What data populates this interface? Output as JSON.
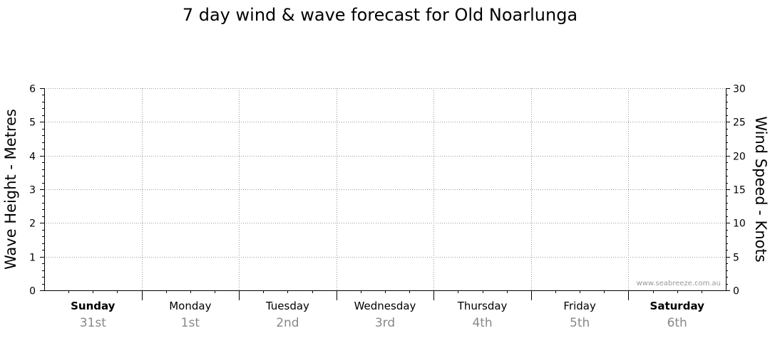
{
  "chart_data": {
    "type": "line",
    "title": "7 day wind & wave forecast for Old Noarlunga",
    "ylabel_left": "Wave Height - Metres",
    "ylabel_right": "Wind Speed - Knots",
    "ylim_left": [
      0,
      6
    ],
    "ylim_right": [
      0,
      30
    ],
    "yticks_left": [
      "0",
      "1",
      "2",
      "3",
      "4",
      "5",
      "6"
    ],
    "yticks_right": [
      "0",
      "5",
      "10",
      "15",
      "20",
      "25",
      "30"
    ],
    "days": [
      {
        "name": "Sunday",
        "date": "31st",
        "bold": true
      },
      {
        "name": "Monday",
        "date": "1st",
        "bold": false
      },
      {
        "name": "Tuesday",
        "date": "2nd",
        "bold": false
      },
      {
        "name": "Wednesday",
        "date": "3rd",
        "bold": false
      },
      {
        "name": "Thursday",
        "date": "4th",
        "bold": false
      },
      {
        "name": "Friday",
        "date": "5th",
        "bold": false
      },
      {
        "name": "Saturday",
        "date": "6th",
        "bold": true
      }
    ],
    "grid": true,
    "series": [],
    "watermark": "www.seabreeze.com.au"
  }
}
